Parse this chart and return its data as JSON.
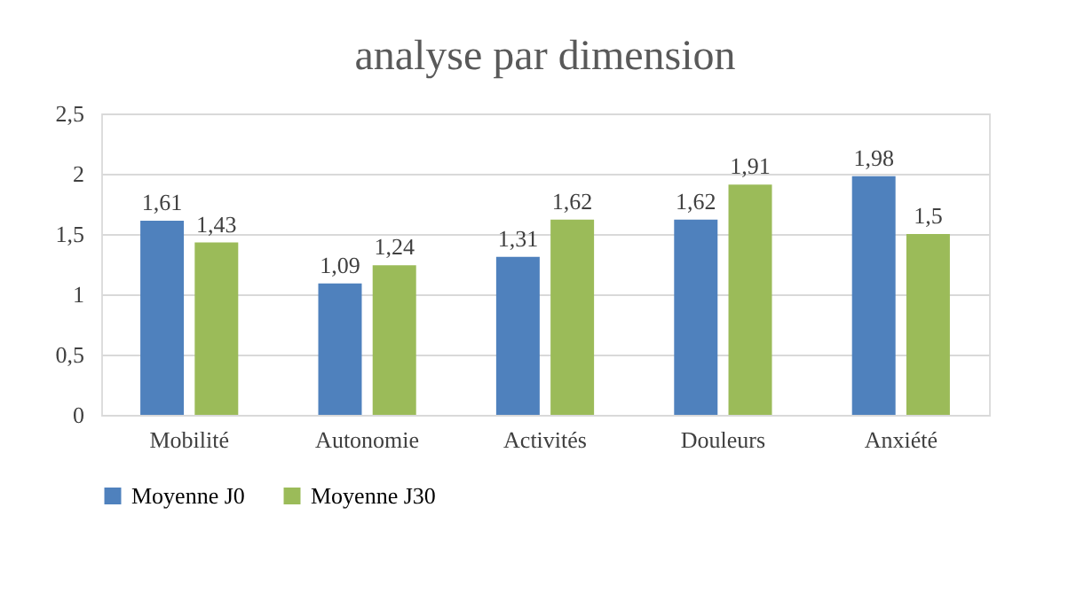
{
  "chart_data": {
    "type": "bar",
    "title": "analyse par dimension",
    "categories": [
      "Mobilité",
      "Autonomie",
      "Activités",
      "Douleurs",
      "Anxiété"
    ],
    "series": [
      {
        "name": "Moyenne J0",
        "color": "#4f81bd",
        "values": [
          1.61,
          1.09,
          1.31,
          1.62,
          1.98
        ],
        "value_labels": [
          "1,61",
          "1,09",
          "1,31",
          "1,62",
          "1,98"
        ]
      },
      {
        "name": "Moyenne J30",
        "color": "#9bbb59",
        "values": [
          1.43,
          1.24,
          1.62,
          1.91,
          1.5
        ],
        "value_labels": [
          "1,43",
          "1,24",
          "1,62",
          "1,91",
          "1,5"
        ]
      }
    ],
    "ylim": [
      0,
      2.5
    ],
    "yticks": [
      0,
      {
        "value": 0.5,
        "label": "0,5"
      },
      1,
      {
        "value": 1.5,
        "label": "1,5"
      },
      2,
      {
        "value": 2.5,
        "label": "2,5"
      }
    ],
    "grid": "y",
    "legend": "bottom"
  }
}
